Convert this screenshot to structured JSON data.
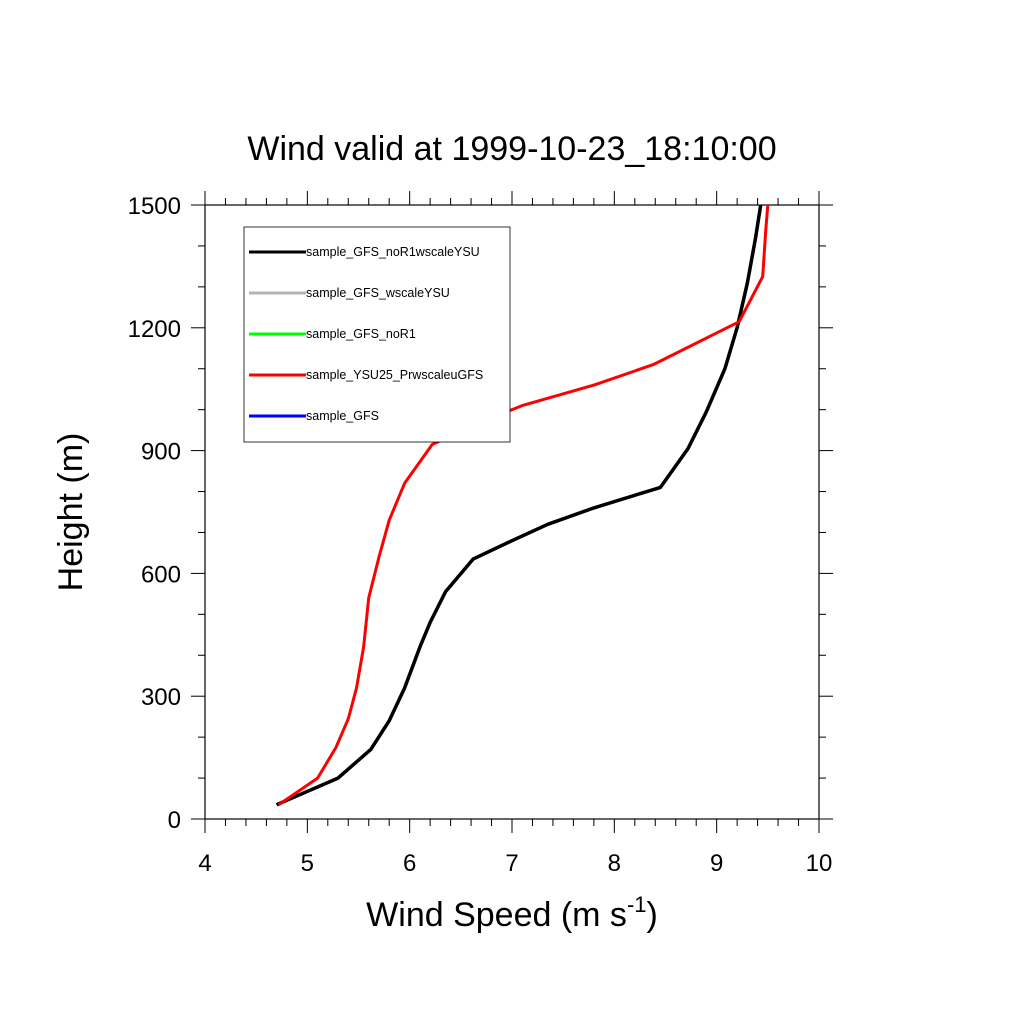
{
  "chart_data": {
    "type": "line",
    "title": "Wind valid at 1999-10-23_18:10:00",
    "xlabel": "Wind Speed (m s",
    "xlabel_superscript": "-1",
    "xlabel_suffix": ")",
    "ylabel": "Height (m)",
    "xlim": [
      4,
      10
    ],
    "ylim": [
      0,
      1500
    ],
    "x_ticks": [
      4,
      5,
      6,
      7,
      8,
      9,
      10
    ],
    "y_ticks": [
      0,
      300,
      600,
      900,
      1200,
      1500
    ],
    "grid": false,
    "legend_position": "top-left",
    "series": [
      {
        "name": "sample_GFS_noR1wscaleYSU",
        "color": "#000000",
        "points": [
          [
            4.7,
            35
          ],
          [
            5.3,
            100
          ],
          [
            5.62,
            170
          ],
          [
            5.8,
            240
          ],
          [
            5.95,
            320
          ],
          [
            6.1,
            420
          ],
          [
            6.2,
            480
          ],
          [
            6.35,
            555
          ],
          [
            6.62,
            635
          ],
          [
            7.0,
            680
          ],
          [
            7.35,
            720
          ],
          [
            7.8,
            760
          ],
          [
            8.45,
            810
          ],
          [
            8.72,
            905
          ],
          [
            8.9,
            995
          ],
          [
            9.08,
            1100
          ],
          [
            9.2,
            1200
          ],
          [
            9.3,
            1310
          ],
          [
            9.38,
            1420
          ],
          [
            9.43,
            1500
          ]
        ]
      },
      {
        "name": "sample_GFS_wscaleYSU",
        "color": "#b4b4b4",
        "points": [
          [
            4.7,
            35
          ],
          [
            5.3,
            100
          ],
          [
            5.62,
            170
          ],
          [
            5.8,
            240
          ],
          [
            5.95,
            320
          ],
          [
            6.1,
            420
          ],
          [
            6.2,
            480
          ],
          [
            6.35,
            555
          ],
          [
            6.62,
            635
          ],
          [
            7.0,
            680
          ],
          [
            7.35,
            720
          ],
          [
            7.8,
            760
          ],
          [
            8.45,
            810
          ],
          [
            8.72,
            905
          ],
          [
            8.9,
            995
          ],
          [
            9.08,
            1100
          ],
          [
            9.2,
            1200
          ],
          [
            9.3,
            1310
          ],
          [
            9.38,
            1420
          ],
          [
            9.43,
            1500
          ]
        ]
      },
      {
        "name": "sample_GFS_noR1",
        "color": "#00ff00",
        "points": [
          [
            4.7,
            35
          ],
          [
            5.3,
            100
          ],
          [
            5.62,
            170
          ],
          [
            5.8,
            240
          ],
          [
            5.95,
            320
          ],
          [
            6.1,
            420
          ],
          [
            6.2,
            480
          ],
          [
            6.35,
            555
          ],
          [
            6.62,
            635
          ],
          [
            7.0,
            680
          ],
          [
            7.35,
            720
          ],
          [
            7.8,
            760
          ],
          [
            8.45,
            810
          ],
          [
            8.72,
            905
          ],
          [
            8.9,
            995
          ],
          [
            9.08,
            1100
          ],
          [
            9.2,
            1200
          ],
          [
            9.3,
            1310
          ],
          [
            9.38,
            1420
          ],
          [
            9.43,
            1500
          ]
        ]
      },
      {
        "name": "sample_YSU25_PrwscaleuGFS",
        "color": "#ff0000",
        "points": [
          [
            4.72,
            35
          ],
          [
            5.1,
            100
          ],
          [
            5.28,
            175
          ],
          [
            5.4,
            245
          ],
          [
            5.48,
            320
          ],
          [
            5.55,
            420
          ],
          [
            5.6,
            540
          ],
          [
            5.7,
            640
          ],
          [
            5.8,
            730
          ],
          [
            5.95,
            820
          ],
          [
            6.22,
            915
          ],
          [
            6.6,
            960
          ],
          [
            7.1,
            1010
          ],
          [
            7.8,
            1060
          ],
          [
            8.38,
            1110
          ],
          [
            9.22,
            1215
          ],
          [
            9.45,
            1325
          ],
          [
            9.48,
            1440
          ],
          [
            9.5,
            1500
          ]
        ]
      },
      {
        "name": "sample_GFS",
        "color": "#0000ff",
        "points": [
          [
            4.7,
            35
          ],
          [
            5.3,
            100
          ],
          [
            5.62,
            170
          ],
          [
            5.8,
            240
          ],
          [
            5.95,
            320
          ],
          [
            6.1,
            420
          ],
          [
            6.2,
            480
          ],
          [
            6.35,
            555
          ],
          [
            6.62,
            635
          ],
          [
            7.0,
            680
          ],
          [
            7.35,
            720
          ],
          [
            7.8,
            760
          ],
          [
            8.45,
            810
          ],
          [
            8.72,
            905
          ],
          [
            8.9,
            995
          ],
          [
            9.08,
            1100
          ],
          [
            9.2,
            1200
          ],
          [
            9.3,
            1310
          ],
          [
            9.38,
            1420
          ],
          [
            9.43,
            1500
          ]
        ]
      }
    ]
  }
}
